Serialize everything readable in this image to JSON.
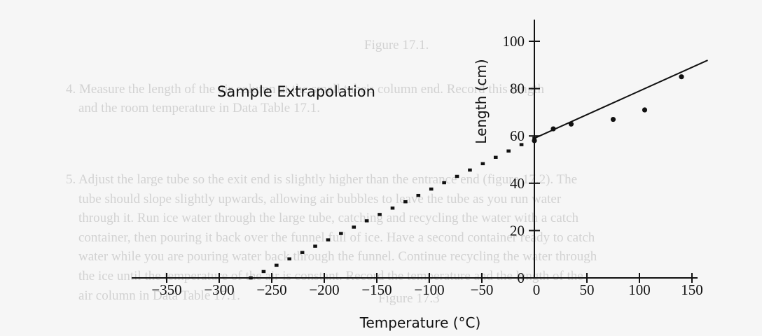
{
  "background_text": [
    "Figure 17.1.",
    "4. Measure the length of the air column at the small tube's column end. Record this length",
    "and the room temperature in Data Table 17.1.",
    "5. Adjust the large tube so the exit end is slightly higher than the entrance end (figure 17.2). The",
    "tube should slope slightly upwards, allowing air bubbles to leave the tube as you run water",
    "through it. Run ice water through the large tube, catching and recycling the water with a catch",
    "container, then pouring it back over the funnel full of ice. Have a second container ready to catch",
    "water while you are pouring water back through the funnel. Continue recycling the water through",
    "the ice until the temperature of the air is constant. Record the temperature and the length of the",
    "air column in Data Table 17.1.",
    "Figure 17.3"
  ],
  "chart_data": {
    "type": "scatter",
    "annotation": "Sample Extrapolation",
    "xlabel": "Temperature (°C)",
    "ylabel": "Length (cm)",
    "xlim": [
      -400,
      180
    ],
    "ylim": [
      -5,
      105
    ],
    "x_ticks": [
      -350,
      -300,
      -250,
      -200,
      -150,
      -100,
      -50,
      0,
      50,
      100,
      150
    ],
    "y_ticks": [
      0,
      20,
      40,
      60,
      80,
      100
    ],
    "points": [
      {
        "x": 0,
        "y": 58
      },
      {
        "x": 18,
        "y": 63
      },
      {
        "x": 35,
        "y": 65
      },
      {
        "x": 75,
        "y": 67
      },
      {
        "x": 105,
        "y": 71
      },
      {
        "x": 140,
        "y": 85
      }
    ],
    "fit_line": {
      "slope": 0.2,
      "intercept": 59,
      "x_start": 0,
      "x_end": 165
    },
    "extrapolation": {
      "x_start": -270,
      "x_end": 0
    }
  }
}
